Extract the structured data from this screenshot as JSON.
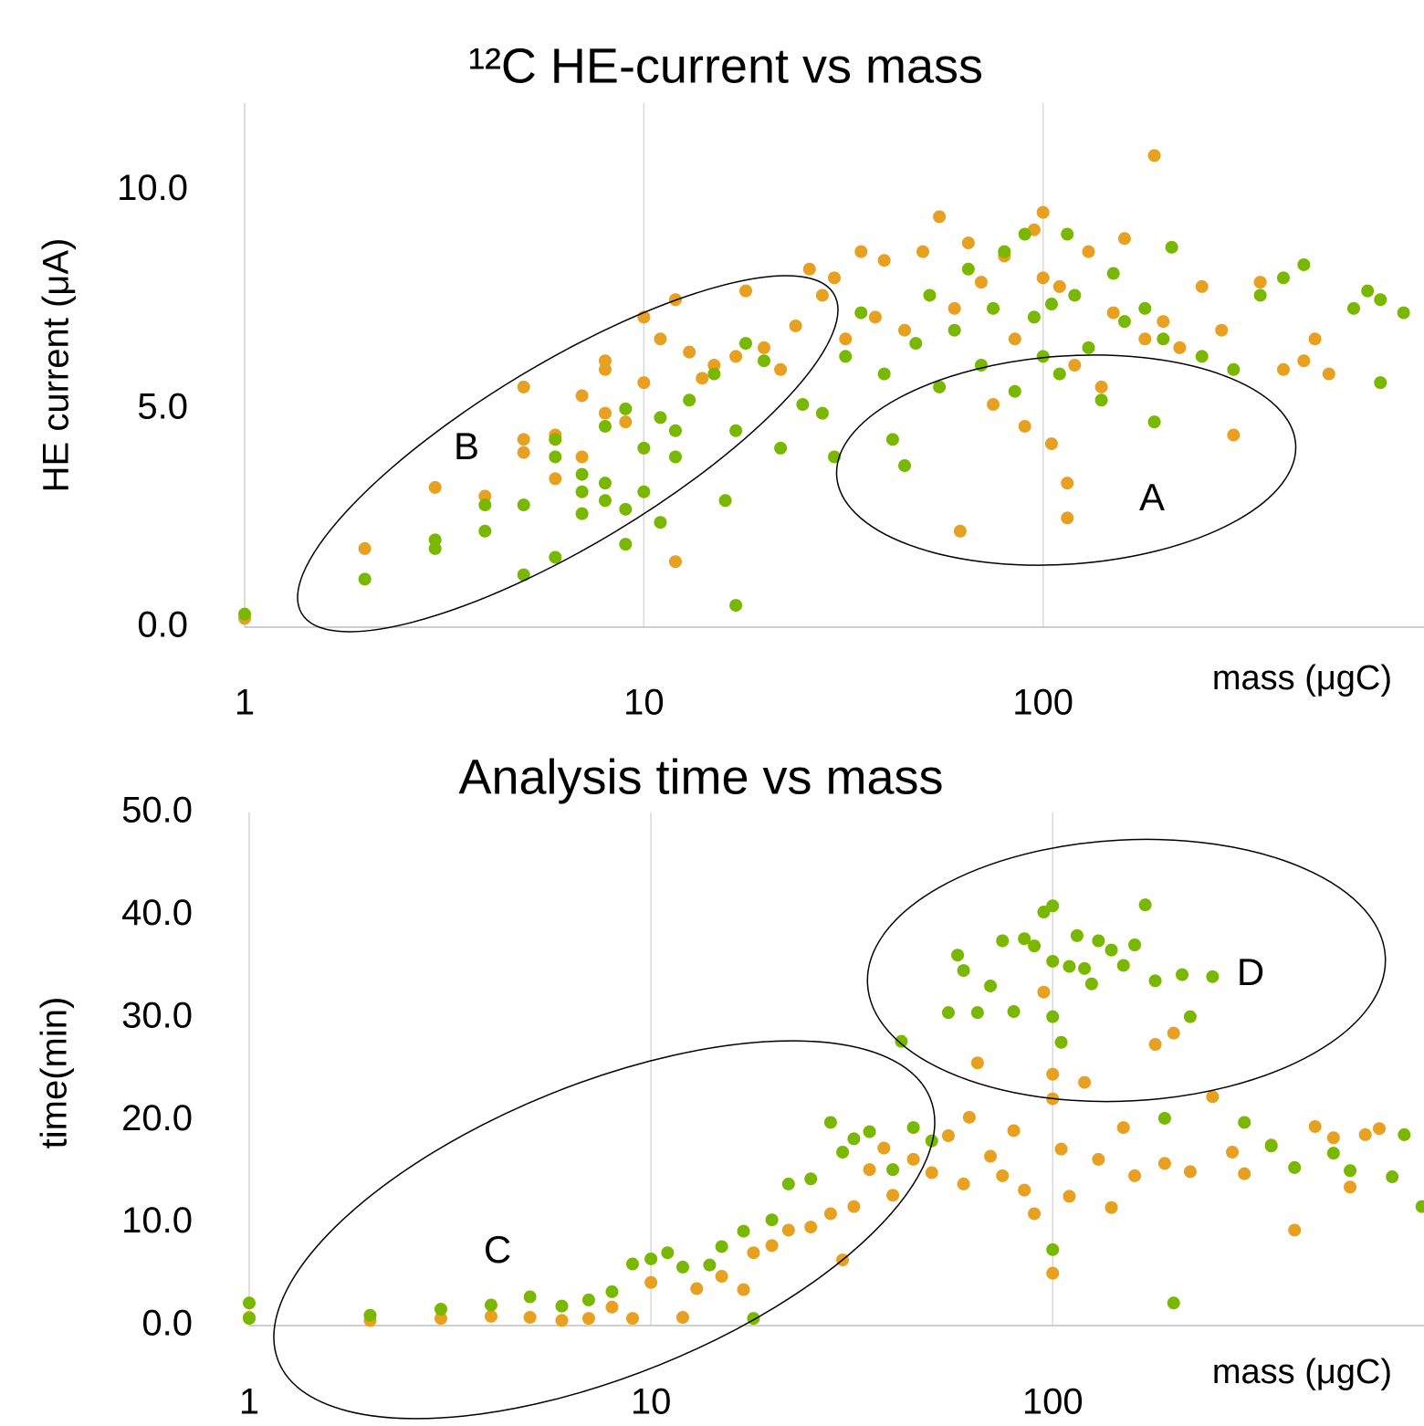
{
  "chart_data": [
    {
      "type": "scatter",
      "title": "¹²C HE-current vs mass",
      "x_label": "mass (μgC)",
      "y_label": "HE current (μA)",
      "xscale": "log",
      "xlim": [
        1,
        900
      ],
      "xticks": [
        1,
        10,
        100
      ],
      "ylim": [
        0,
        12
      ],
      "yticks": [
        {
          "value": 0,
          "label": "0.0"
        },
        {
          "value": 5,
          "label": "5.0"
        },
        {
          "value": 10,
          "label": "10.0"
        }
      ],
      "grid": "x",
      "annotations": [
        "B",
        "A"
      ],
      "series": [
        {
          "color": "#e8a020",
          "x": [
            1,
            2,
            3,
            4,
            5,
            5,
            5,
            6,
            6,
            7,
            7,
            8,
            8,
            8,
            9,
            10,
            10,
            11,
            12,
            12,
            13,
            14,
            15,
            17,
            18,
            20,
            22,
            24,
            26,
            28,
            30,
            32,
            35,
            38,
            40,
            45,
            50,
            55,
            60,
            62,
            65,
            70,
            75,
            80,
            85,
            90,
            95,
            100,
            100,
            105,
            110,
            115,
            115,
            120,
            130,
            140,
            150,
            160,
            180,
            190,
            200,
            220,
            250,
            280,
            300,
            350,
            400,
            450,
            480,
            520
          ],
          "y": [
            0.2,
            1.8,
            3.2,
            3.0,
            4.3,
            5.5,
            4.0,
            3.4,
            4.4,
            5.3,
            3.9,
            5.9,
            6.1,
            4.9,
            4.7,
            5.6,
            7.1,
            6.6,
            1.5,
            7.5,
            6.3,
            5.7,
            6.0,
            6.2,
            7.7,
            6.4,
            5.9,
            6.9,
            8.2,
            7.6,
            8.0,
            6.6,
            8.6,
            7.1,
            8.4,
            6.8,
            8.6,
            9.4,
            7.3,
            2.2,
            8.8,
            7.9,
            5.1,
            8.5,
            6.6,
            4.6,
            9.1,
            9.5,
            8.0,
            4.2,
            7.8,
            3.3,
            2.5,
            6.0,
            8.6,
            5.5,
            7.2,
            8.9,
            6.6,
            10.8,
            7.0,
            6.4,
            7.8,
            6.8,
            4.4,
            7.9,
            5.9,
            6.1,
            6.6,
            5.8
          ]
        },
        {
          "color": "#7ab800",
          "x": [
            1,
            2,
            3,
            3,
            4,
            4,
            5,
            5,
            6,
            6,
            6,
            7,
            7,
            7,
            8,
            8,
            8,
            9,
            9,
            9,
            10,
            10,
            11,
            11,
            12,
            12,
            13,
            15,
            16,
            17,
            17,
            18,
            20,
            22,
            25,
            28,
            30,
            32,
            35,
            40,
            42,
            45,
            48,
            52,
            55,
            60,
            65,
            70,
            75,
            80,
            85,
            90,
            95,
            100,
            105,
            110,
            115,
            120,
            130,
            140,
            150,
            160,
            180,
            190,
            200,
            210,
            250,
            300,
            350,
            400,
            450,
            600,
            650,
            700,
            700,
            800
          ],
          "y": [
            0.3,
            1.1,
            2.0,
            1.8,
            2.8,
            2.2,
            2.8,
            1.2,
            4.3,
            3.9,
            1.6,
            3.5,
            2.6,
            3.1,
            4.6,
            2.9,
            3.3,
            5.0,
            2.7,
            1.9,
            4.1,
            3.1,
            4.8,
            2.4,
            4.5,
            3.9,
            5.2,
            5.8,
            2.9,
            4.5,
            0.5,
            6.5,
            6.1,
            4.1,
            5.1,
            4.9,
            3.9,
            6.2,
            7.2,
            5.8,
            4.3,
            3.7,
            6.5,
            7.6,
            5.5,
            6.8,
            8.2,
            6.0,
            7.3,
            8.6,
            5.4,
            9.0,
            7.1,
            6.2,
            7.4,
            5.8,
            9.0,
            7.6,
            6.4,
            5.2,
            8.1,
            7.0,
            7.3,
            4.7,
            6.6,
            8.7,
            6.2,
            5.9,
            7.6,
            8.0,
            8.3,
            7.3,
            7.7,
            7.5,
            5.6,
            7.2
          ]
        }
      ]
    },
    {
      "type": "scatter",
      "title": "Analysis time vs mass",
      "x_label": "mass (μgC)",
      "y_label": "time(min)",
      "xscale": "log",
      "xlim": [
        1,
        840
      ],
      "xticks": [
        1,
        10,
        100
      ],
      "ylim": [
        0,
        50
      ],
      "yticks": [
        {
          "value": 0,
          "label": "0.0"
        },
        {
          "value": 10,
          "label": "10.0"
        },
        {
          "value": 20,
          "label": "20.0"
        },
        {
          "value": 30,
          "label": "30.0"
        },
        {
          "value": 40,
          "label": "40.0"
        },
        {
          "value": 50,
          "label": "50.0"
        }
      ],
      "grid": "x",
      "annotations": [
        "C",
        "D"
      ],
      "series": [
        {
          "color": "#e8a020",
          "x": [
            1,
            2,
            3,
            4,
            5,
            6,
            7,
            8,
            9,
            10,
            12,
            13,
            15,
            17,
            18,
            20,
            22,
            25,
            28,
            30,
            32,
            35,
            38,
            40,
            45,
            50,
            55,
            60,
            62,
            65,
            70,
            75,
            80,
            85,
            90,
            95,
            100,
            100,
            100,
            105,
            110,
            120,
            130,
            140,
            150,
            160,
            180,
            190,
            200,
            220,
            250,
            280,
            300,
            350,
            400,
            450,
            500,
            550,
            600,
            650
          ],
          "y": [
            0.8,
            0.5,
            0.7,
            0.9,
            0.8,
            0.5,
            0.7,
            1.8,
            0.7,
            4.2,
            0.8,
            3.6,
            4.8,
            3.5,
            7.1,
            7.8,
            9.3,
            9.6,
            10.9,
            6.4,
            11.6,
            15.2,
            17.3,
            12.7,
            16.2,
            14.9,
            18.5,
            13.8,
            20.3,
            25.6,
            16.5,
            14.6,
            19.0,
            13.2,
            10.9,
            32.5,
            24.5,
            22.1,
            5.1,
            17.2,
            12.6,
            23.7,
            16.2,
            11.5,
            19.3,
            14.6,
            27.4,
            15.8,
            28.5,
            15.0,
            22.3,
            16.9,
            14.8,
            17.6,
            9.3,
            19.4,
            18.3,
            13.5,
            18.6,
            19.2
          ]
        },
        {
          "color": "#7ab800",
          "x": [
            1,
            1,
            2,
            3,
            4,
            5,
            6,
            7,
            8,
            9,
            10,
            11,
            12,
            14,
            15,
            17,
            18,
            20,
            22,
            25,
            28,
            30,
            32,
            35,
            40,
            42,
            45,
            50,
            55,
            58,
            60,
            65,
            70,
            75,
            80,
            85,
            90,
            95,
            100,
            100,
            100,
            100,
            105,
            110,
            115,
            120,
            125,
            130,
            140,
            150,
            160,
            170,
            180,
            190,
            200,
            210,
            220,
            250,
            300,
            350,
            400,
            500,
            550,
            700,
            750,
            830
          ],
          "y": [
            2.2,
            0.7,
            1.0,
            1.6,
            2.0,
            2.8,
            1.9,
            2.5,
            3.3,
            6.0,
            6.5,
            7.1,
            5.7,
            5.9,
            7.7,
            9.2,
            0.7,
            10.3,
            13.8,
            14.3,
            19.8,
            16.9,
            18.2,
            18.9,
            15.2,
            27.7,
            19.3,
            18.0,
            30.5,
            36.1,
            34.6,
            30.5,
            33.1,
            37.5,
            30.6,
            37.7,
            37.0,
            40.3,
            40.9,
            35.5,
            30.1,
            7.4,
            27.6,
            35.0,
            38.0,
            34.8,
            33.3,
            37.5,
            36.6,
            35.1,
            37.1,
            41.0,
            33.6,
            20.2,
            2.2,
            34.2,
            30.1,
            34.0,
            19.8,
            17.5,
            15.4,
            16.8,
            15.1,
            14.5,
            18.6,
            11.6
          ]
        }
      ]
    }
  ]
}
